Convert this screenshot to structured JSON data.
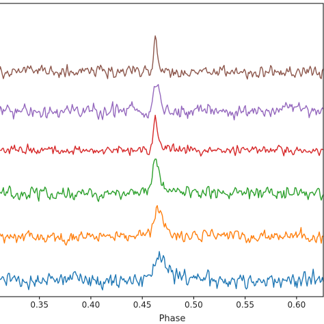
{
  "chart_data": {
    "type": "line",
    "title": "",
    "xlabel": "Phase",
    "ylabel": "",
    "xlim": [
      0.311,
      0.626
    ],
    "ylim": [
      0,
      7.1
    ],
    "x_ticks": [
      {
        "value": 0.35,
        "label": "0.35"
      },
      {
        "value": 0.4,
        "label": "0.40"
      },
      {
        "value": 0.45,
        "label": "0.45"
      },
      {
        "value": 0.5,
        "label": "0.50"
      },
      {
        "value": 0.55,
        "label": "0.55"
      },
      {
        "value": 0.6,
        "label": "0.60"
      }
    ],
    "y_ticks": [],
    "grid": false,
    "legend": null,
    "series": [
      {
        "color": "#1f77b4",
        "offset": 0.4,
        "noise": 0.22,
        "peak_center": 0.467,
        "peak_height": 0.55,
        "peak_width": 0.006,
        "peak_tail": 0.014
      },
      {
        "color": "#ff7f0e",
        "offset": 1.45,
        "noise": 0.17,
        "peak_center": 0.465,
        "peak_height": 0.65,
        "peak_width": 0.004,
        "peak_tail": 0.012
      },
      {
        "color": "#2ca02c",
        "offset": 2.5,
        "noise": 0.17,
        "peak_center": 0.463,
        "peak_height": 0.85,
        "peak_width": 0.003,
        "peak_tail": 0.008
      },
      {
        "color": "#d62728",
        "offset": 3.55,
        "noise": 0.13,
        "peak_center": 0.463,
        "peak_height": 0.8,
        "peak_width": 0.002,
        "peak_tail": 0.004
      },
      {
        "color": "#9467bd",
        "offset": 4.5,
        "noise": 0.2,
        "peak_center": 0.464,
        "peak_height": 0.8,
        "peak_width": 0.0025,
        "peak_tail": 0.003
      },
      {
        "color": "#8c564b",
        "offset": 5.45,
        "noise": 0.16,
        "peak_center": 0.463,
        "peak_height": 0.9,
        "peak_width": 0.0015,
        "peak_tail": 0.002
      }
    ]
  }
}
